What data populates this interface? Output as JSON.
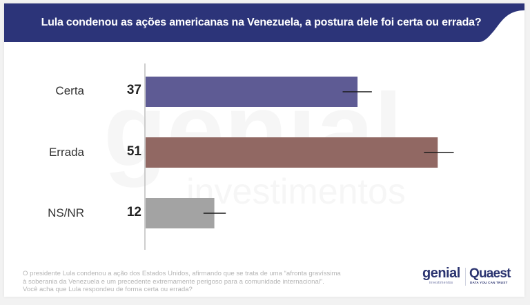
{
  "header": {
    "title": "Lula condenou as ações americanas na Venezuela, a postura dele foi certa ou errada?",
    "background_color": "#2c3479"
  },
  "watermark": {
    "primary": "genial",
    "secondary": "investimentos"
  },
  "chart_data": {
    "type": "bar",
    "orientation": "horizontal",
    "title": "Lula condenou as ações americanas na Venezuela, a postura dele foi certa ou errada?",
    "xlabel": "",
    "ylabel": "",
    "categories": [
      "Certa",
      "Errada",
      "NS/NR"
    ],
    "values": [
      37,
      51,
      12
    ],
    "data_labels": [
      "37",
      "51",
      "12"
    ],
    "colors": [
      "#5e5b94",
      "#916863",
      "#a3a3a3"
    ],
    "error_bars": [
      {
        "low": 34.4,
        "high": 39.5
      },
      {
        "low": 48.6,
        "high": 53.8
      },
      {
        "low": 10.1,
        "high": 14
      }
    ],
    "xlim": [
      0,
      60
    ],
    "grid": false,
    "legend": "none"
  },
  "footnote": {
    "lines": [
      "O presidente Lula condenou a ação dos Estados Unidos, afirmando que se trata de uma “afronta gravíssima",
      "à soberania da Venezuela e um precedente extremamente perigoso para a comunidade internacional”.",
      "Você acha que Lula respondeu de forma certa ou errada?"
    ]
  },
  "logos": {
    "genial": "genial",
    "genial_sub": "investimentos",
    "quaest": "Quaest",
    "quaest_sub": "DATA YOU CAN TRUST"
  }
}
